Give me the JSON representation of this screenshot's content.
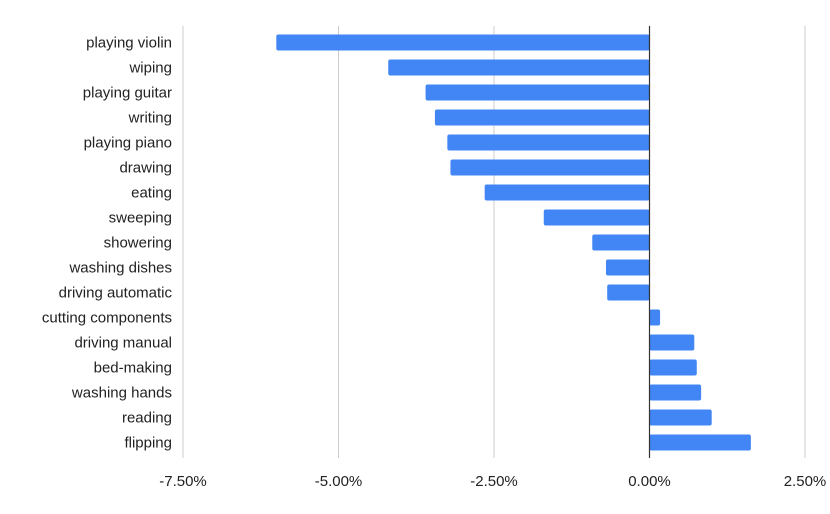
{
  "chart_data": {
    "type": "bar",
    "orientation": "horizontal",
    "categories": [
      "playing violin",
      "wiping",
      "playing guitar",
      "writing",
      "playing piano",
      "drawing",
      "eating",
      "sweeping",
      "showering",
      "washing dishes",
      "driving automatic",
      "cutting components",
      "driving manual",
      "bed-making",
      "washing hands",
      "reading",
      "flipping"
    ],
    "values": [
      -6.0,
      -4.2,
      -3.6,
      -3.45,
      -3.25,
      -3.2,
      -2.65,
      -1.7,
      -0.92,
      -0.7,
      -0.68,
      0.17,
      0.72,
      0.76,
      0.83,
      1.0,
      1.63
    ],
    "xlim": [
      -7.5,
      2.5
    ],
    "ticks": [
      "-7.50%",
      "-5.00%",
      "-2.50%",
      "0.00%",
      "2.50%"
    ],
    "tick_values": [
      -7.5,
      -5.0,
      -2.5,
      0.0,
      2.5
    ],
    "grid": true,
    "bar_color": "#4285f4",
    "axis_color": "#333333",
    "grid_color": "#cccccc"
  }
}
